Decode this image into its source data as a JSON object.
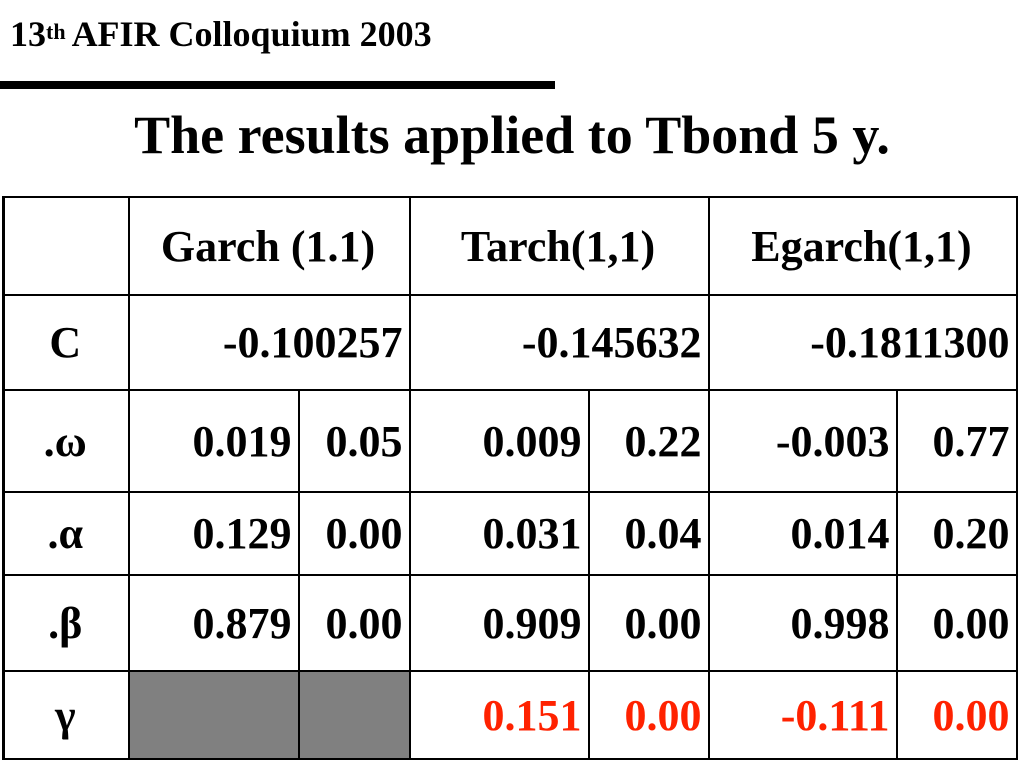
{
  "header": {
    "number": "13",
    "superscript": "th",
    "rest": "AFIR Colloquium 2003"
  },
  "title": "The results applied to Tbond 5 y.",
  "table": {
    "headers": [
      "",
      "Garch (1.1)",
      "Tarch(1,1)",
      "Egarch(1,1)"
    ],
    "c_row": {
      "label": "C",
      "values": [
        "-0.100257",
        "-0.145632",
        "-0.1811300"
      ]
    },
    "rows": [
      {
        "label": ".ω",
        "cells": [
          "0.019",
          "0.05",
          "0.009",
          "0.22",
          "-0.003",
          "0.77"
        ]
      },
      {
        "label": ".α",
        "cells": [
          "0.129",
          "0.00",
          "0.031",
          "0.04",
          "0.014",
          "0.20"
        ]
      },
      {
        "label": ".β",
        "cells": [
          "0.879",
          "0.00",
          "0.909",
          "0.00",
          "0.998",
          "0.00"
        ]
      }
    ],
    "gamma_row": {
      "label": "γ",
      "cells": [
        "",
        "",
        "0.151",
        "0.00",
        "-0.111",
        "0.00"
      ]
    }
  },
  "colors": {
    "highlight": "#ff2200",
    "shaded_cell": "#808080"
  }
}
